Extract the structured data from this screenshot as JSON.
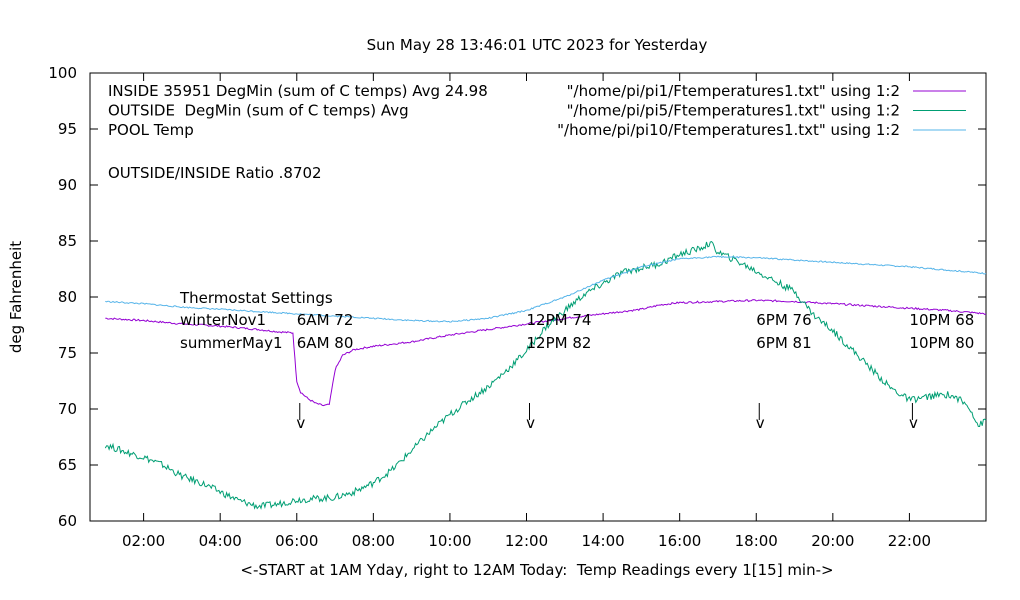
{
  "chart_data": {
    "type": "line",
    "title": "Sun May 28 13:46:01 UTC 2023 for Yesterday",
    "xlabel": "<-START at 1AM Yday, right to 12AM Today:  Temp Readings every 1[15] min->",
    "ylabel": "deg Fahrenheit",
    "xlim": [
      0.6,
      24.0
    ],
    "ylim": [
      60,
      100
    ],
    "yticks": [
      "60",
      "65",
      "70",
      "75",
      "80",
      "85",
      "90",
      "95",
      "100"
    ],
    "xticks": [
      {
        "value": 2,
        "label": "02:00"
      },
      {
        "value": 4,
        "label": "04:00"
      },
      {
        "value": 6,
        "label": "06:00"
      },
      {
        "value": 8,
        "label": "08:00"
      },
      {
        "value": 10,
        "label": "10:00"
      },
      {
        "value": 12,
        "label": "12:00"
      },
      {
        "value": 14,
        "label": "14:00"
      },
      {
        "value": 16,
        "label": "16:00"
      },
      {
        "value": 18,
        "label": "18:00"
      },
      {
        "value": 20,
        "label": "20:00"
      },
      {
        "value": 22,
        "label": "22:00"
      }
    ],
    "grid": false,
    "legend_placement": "top-right",
    "series": [
      {
        "key": "inside",
        "legend_left": "INSIDE 35951 DegMin (sum of C temps) Avg 24.98",
        "legend_right": "\"/home/pi/pi1/Ftemperatures1.txt\" using 1:2",
        "color": "#9400d3",
        "x": [
          1.0,
          2.0,
          3.0,
          4.0,
          5.0,
          5.5,
          5.9,
          5.95,
          6.0,
          6.1,
          6.3,
          6.5,
          6.7,
          6.85,
          7.0,
          7.2,
          7.5,
          8.0,
          9.0,
          10.0,
          11.0,
          12.0,
          13.0,
          14.0,
          15.0,
          15.5,
          16.0,
          17.0,
          18.0,
          19.0,
          19.5,
          20.0,
          21.0,
          22.0,
          23.0,
          24.0
        ],
        "y": [
          78.1,
          77.9,
          77.6,
          77.4,
          77.1,
          76.9,
          76.8,
          74.5,
          72.5,
          71.5,
          70.9,
          70.5,
          70.3,
          70.4,
          73.5,
          74.8,
          75.3,
          75.6,
          76.0,
          76.6,
          77.1,
          77.6,
          78.1,
          78.5,
          78.9,
          79.3,
          79.5,
          79.6,
          79.7,
          79.6,
          79.5,
          79.4,
          79.2,
          79.0,
          78.8,
          78.5
        ]
      },
      {
        "key": "outside",
        "legend_left": "OUTSIDE  DegMin (sum of C temps) Avg",
        "legend_right": "\"/home/pi/pi5/Ftemperatures1.txt\" using 1:2",
        "color": "#009e73",
        "x": [
          1.0,
          1.5,
          2.0,
          2.5,
          3.0,
          3.5,
          4.0,
          4.5,
          5.0,
          5.5,
          6.0,
          6.5,
          7.0,
          7.5,
          8.0,
          8.5,
          9.0,
          9.5,
          10.0,
          10.5,
          11.0,
          11.5,
          12.0,
          12.5,
          13.0,
          13.5,
          14.0,
          14.5,
          15.0,
          15.5,
          16.0,
          16.5,
          16.8,
          17.0,
          17.5,
          18.0,
          18.5,
          19.0,
          19.5,
          20.0,
          20.5,
          21.0,
          21.5,
          22.0,
          22.5,
          23.0,
          23.3,
          23.6,
          23.8,
          24.0
        ],
        "y": [
          66.8,
          66.2,
          65.7,
          65.0,
          64.0,
          63.4,
          62.6,
          61.8,
          61.3,
          61.5,
          61.9,
          62.0,
          62.1,
          62.6,
          63.4,
          64.6,
          66.3,
          68.0,
          69.5,
          70.8,
          72.0,
          73.5,
          75.2,
          77.3,
          78.8,
          80.2,
          81.2,
          82.2,
          82.6,
          83.0,
          83.8,
          84.3,
          84.8,
          84.0,
          83.2,
          82.3,
          81.4,
          80.5,
          78.4,
          77.0,
          75.3,
          73.6,
          71.9,
          70.8,
          71.1,
          71.3,
          70.9,
          70.0,
          68.5,
          69.0
        ]
      },
      {
        "key": "pool",
        "legend_left": "POOL Temp",
        "legend_right": "\"/home/pi/pi10/Ftemperatures1.txt\" using 1:2",
        "color": "#56b4e9",
        "x": [
          1.0,
          2.0,
          3.0,
          4.0,
          5.0,
          6.0,
          7.0,
          8.0,
          9.0,
          10.0,
          11.0,
          12.0,
          13.0,
          14.0,
          15.0,
          16.0,
          17.0,
          18.0,
          19.0,
          20.0,
          21.0,
          22.0,
          23.0,
          24.0
        ],
        "y": [
          79.6,
          79.4,
          79.1,
          78.9,
          78.7,
          78.5,
          78.3,
          78.1,
          77.9,
          77.8,
          78.1,
          78.8,
          80.0,
          81.5,
          82.7,
          83.4,
          83.6,
          83.5,
          83.3,
          83.1,
          82.9,
          82.7,
          82.4,
          82.1
        ]
      }
    ],
    "annotations": {
      "ratio": "OUTSIDE/INSIDE Ratio .8702",
      "thermostat_title": "Thermostat Settings",
      "winter_label": "winterNov1",
      "summer_label": "summerMay1",
      "setpoints": [
        {
          "x": 6,
          "winter": "6AM 72",
          "summer": "6AM 80"
        },
        {
          "x": 12,
          "winter": "12PM 74",
          "summer": "12PM 82"
        },
        {
          "x": 18,
          "winter": "6PM 76",
          "summer": "6PM 81"
        },
        {
          "x": 22,
          "winter": "10PM 68",
          "summer": "10PM 80"
        }
      ],
      "arrow_glyph": "v"
    }
  }
}
